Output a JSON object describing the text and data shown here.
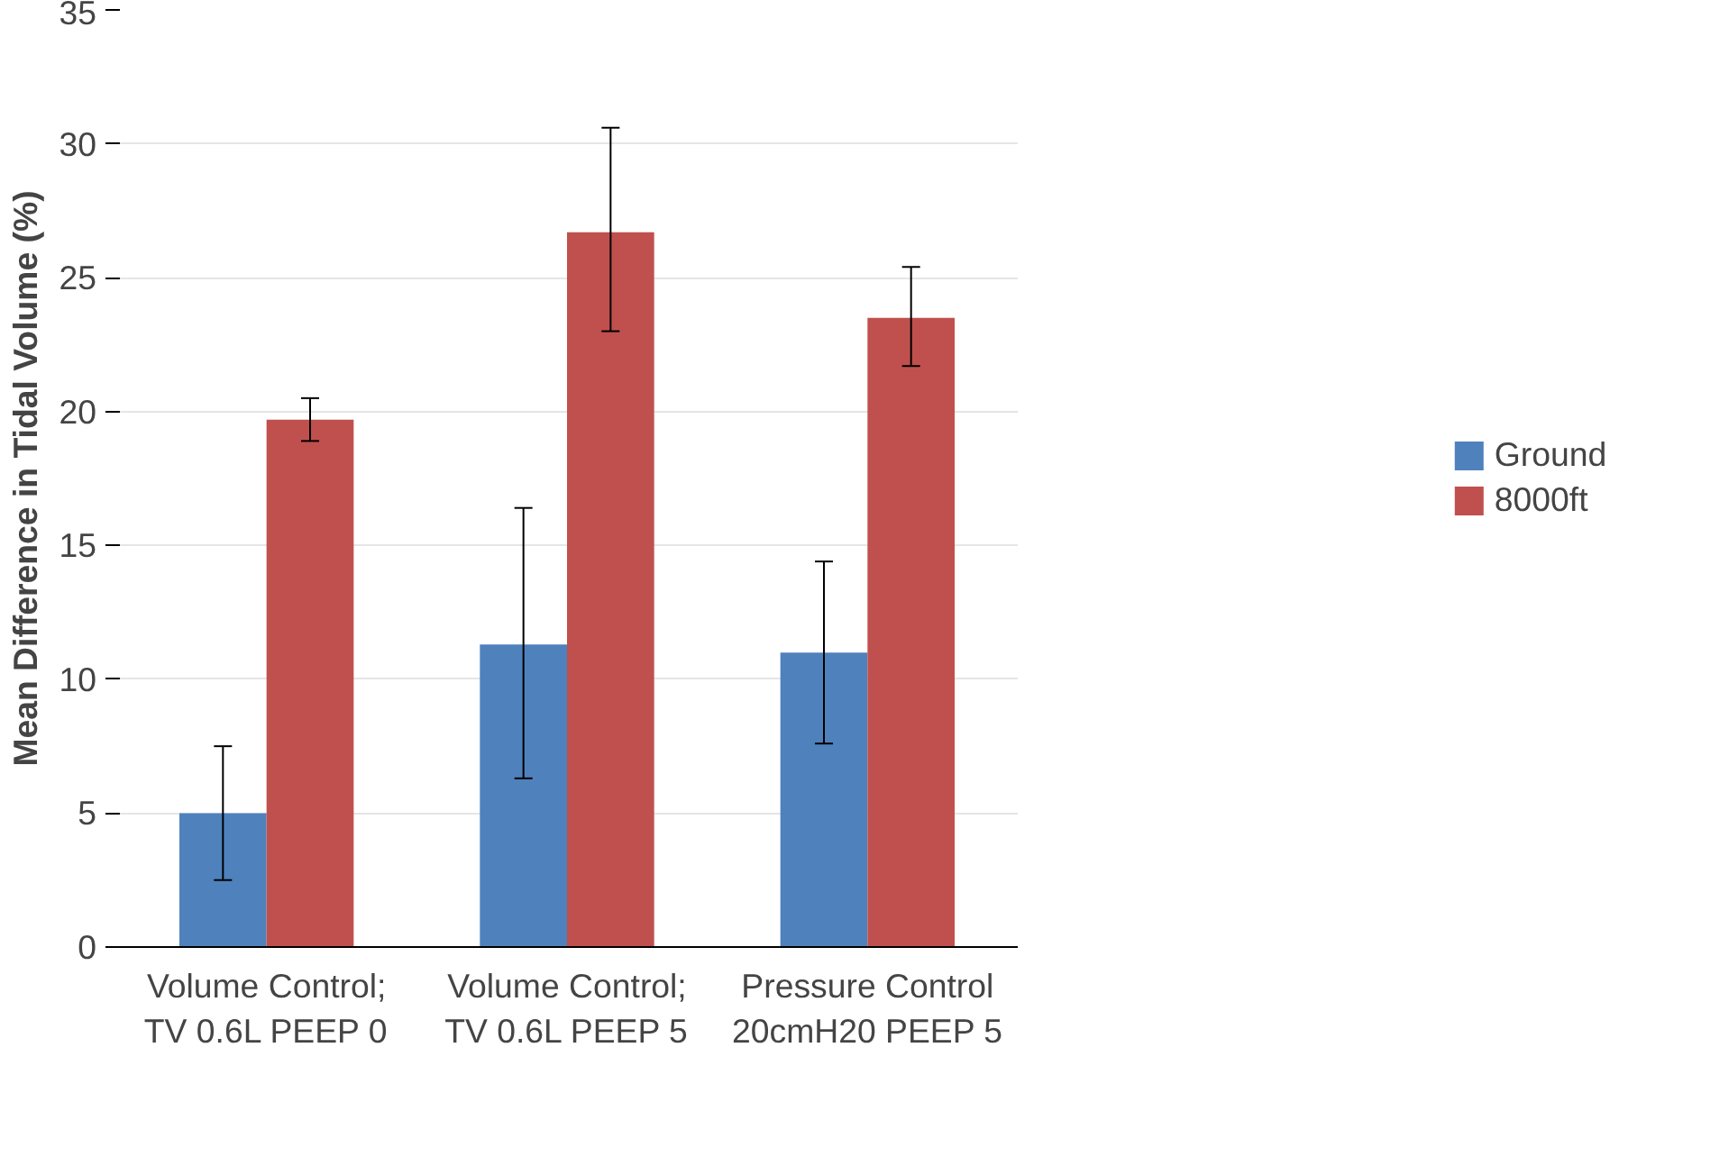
{
  "chart_data": {
    "type": "bar",
    "ylabel": "Mean Difference in Tidal Volume (%)",
    "categories": [
      "Volume Control; TV 0.6L PEEP 0",
      "Volume Control; TV 0.6L PEEP 5",
      "Pressure Control 20cmH20 PEEP 5"
    ],
    "series": [
      {
        "name": "Ground",
        "color": "#4f81bd",
        "values": [
          5.0,
          11.3,
          11.0
        ],
        "errors": [
          [
            2.5,
            7.5
          ],
          [
            6.3,
            16.4
          ],
          [
            7.6,
            14.4
          ]
        ]
      },
      {
        "name": "8000ft",
        "color": "#c0504d",
        "values": [
          19.7,
          26.7,
          23.5
        ],
        "errors": [
          [
            18.9,
            20.5
          ],
          [
            23.0,
            30.6
          ],
          [
            21.7,
            25.4
          ]
        ]
      }
    ],
    "ylim": [
      0,
      35
    ],
    "yticks": [
      0,
      5,
      10,
      15,
      20,
      25,
      30,
      35
    ],
    "grid": "y",
    "legend": "right"
  }
}
